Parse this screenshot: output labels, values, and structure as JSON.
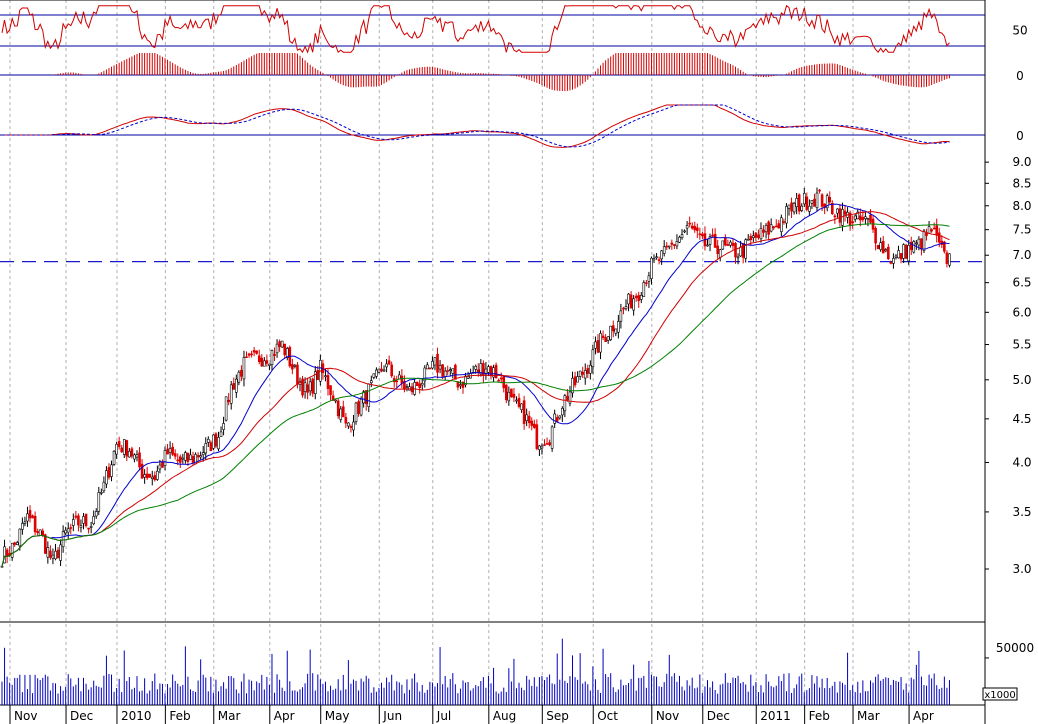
{
  "chart_data": {
    "type": "line",
    "description_kind": "stock-chart",
    "price_axis": {
      "scale": "log",
      "ticks": [
        "9.0",
        "8.5",
        "8.0",
        "7.5",
        "7.0",
        "6.5",
        "6.0",
        "5.5",
        "5.0",
        "4.5",
        "4.0",
        "3.5",
        "3.0"
      ],
      "tick_values": [
        9.0,
        8.5,
        8.0,
        7.5,
        7.0,
        6.5,
        6.0,
        5.5,
        5.0,
        4.5,
        4.0,
        3.5,
        3.0
      ],
      "range": [
        2.6,
        9.3
      ],
      "reference_line": 6.88
    },
    "volume_axis": {
      "tick": "50000",
      "tick_value": 50000,
      "range": [
        0,
        85000
      ],
      "multiplier_label": "x1000"
    },
    "osc1_axis": {
      "tick": "50",
      "tick_value": 50,
      "band_lines": [
        70,
        30
      ]
    },
    "osc2_axis": {
      "tick": "0",
      "tick_value": 0
    },
    "osc3_axis": {
      "tick": "0",
      "tick_value": 0
    },
    "x_labels": [
      "Nov",
      "Dec",
      "2010",
      "Feb",
      "Mar",
      "Apr",
      "May",
      "Jun",
      "Jul",
      "Aug",
      "Sep",
      "Oct",
      "Nov",
      "Dec",
      "2011",
      "Feb",
      "Mar",
      "Apr"
    ],
    "x_label_positions": [
      0,
      22,
      42,
      61,
      80,
      102,
      122,
      145,
      166,
      188,
      209,
      229,
      252,
      272,
      293,
      312,
      331,
      353
    ],
    "total_bars": 373,
    "price_series": {
      "x": [
        0,
        5,
        10,
        15,
        20,
        25,
        30,
        35,
        40,
        45,
        50,
        55,
        60,
        65,
        70,
        75,
        80,
        85,
        90,
        95,
        100,
        105,
        110,
        115,
        120,
        125,
        130,
        135,
        140,
        145,
        150,
        155,
        160,
        165,
        170,
        175,
        180,
        185,
        190,
        195,
        200,
        205,
        210,
        215,
        220,
        225,
        230,
        235,
        240,
        245,
        250,
        255,
        260,
        265,
        270,
        275,
        280,
        285,
        290,
        295,
        300,
        305,
        310,
        315,
        320,
        325,
        330,
        335,
        340,
        345,
        350,
        355,
        360,
        365,
        370
      ],
      "close": [
        3.1,
        3.2,
        3.45,
        3.3,
        3.05,
        3.3,
        3.4,
        3.4,
        3.75,
        4.2,
        4.15,
        3.9,
        3.85,
        4.1,
        4.0,
        4.05,
        4.15,
        4.3,
        4.9,
        5.2,
        5.3,
        5.35,
        5.5,
        5.1,
        4.8,
        5.15,
        4.8,
        4.4,
        4.65,
        4.9,
        5.2,
        5.0,
        4.85,
        5.0,
        5.2,
        5.1,
        4.95,
        5.1,
        5.2,
        5.05,
        4.7,
        4.55,
        4.25,
        4.3,
        4.7,
        4.95,
        5.2,
        5.55,
        5.8,
        6.1,
        6.35,
        6.8,
        7.0,
        7.3,
        7.55,
        7.2,
        7.2,
        7.1,
        7.05,
        7.3,
        7.45,
        7.65,
        7.95,
        8.1,
        8.2,
        8.0,
        7.8,
        7.7,
        7.65,
        7.2,
        6.9,
        7.1,
        7.2,
        7.5,
        6.95
      ]
    },
    "legend": []
  }
}
